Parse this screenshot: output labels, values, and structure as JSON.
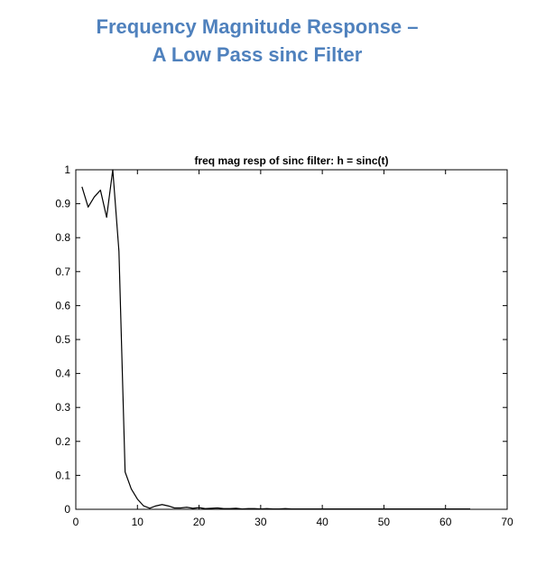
{
  "slide": {
    "title_line1": "Frequency Magnitude Response –",
    "title_line2": "A Low Pass sinc Filter"
  },
  "colors": {
    "title": "#4f81bd",
    "line": "#000000",
    "axes": "#000000"
  },
  "chart_data": {
    "type": "line",
    "title": "freq mag resp of sinc filter: h = sinc(t)",
    "xlabel": "",
    "ylabel": "",
    "xlim": [
      0,
      70
    ],
    "ylim": [
      0,
      1
    ],
    "xticks": [
      "0",
      "10",
      "20",
      "30",
      "40",
      "50",
      "60",
      "70"
    ],
    "yticks": [
      "0",
      "0.1",
      "0.2",
      "0.3",
      "0.4",
      "0.5",
      "0.6",
      "0.7",
      "0.8",
      "0.9",
      "1"
    ],
    "grid": false,
    "legend": "none",
    "series": [
      {
        "x": [
          1,
          2,
          3,
          4,
          5,
          6,
          7,
          8,
          9,
          10,
          11,
          12,
          13,
          14,
          15,
          16,
          17,
          18,
          19,
          20,
          21,
          22,
          23,
          24,
          25,
          26,
          27,
          28,
          29,
          30,
          31,
          32,
          33,
          34,
          35,
          36,
          37,
          38,
          39,
          40,
          41,
          42,
          43,
          44,
          45,
          46,
          47,
          48,
          49,
          50,
          51,
          52,
          53,
          54,
          55,
          56,
          57,
          58,
          59,
          60,
          61,
          62,
          63,
          64
        ],
        "y": [
          0.95,
          0.89,
          0.92,
          0.94,
          0.86,
          1.0,
          0.76,
          0.11,
          0.06,
          0.03,
          0.01,
          0.003,
          0.01,
          0.014,
          0.01,
          0.004,
          0.004,
          0.006,
          0.003,
          0.005,
          0.002,
          0.003,
          0.004,
          0.002,
          0.002,
          0.003,
          0.001,
          0.002,
          0.002,
          0.001,
          0.002,
          0.001,
          0.001,
          0.002,
          0.001,
          0.001,
          0.001,
          0.001,
          0.001,
          0.001,
          0.001,
          0.001,
          0.001,
          0.001,
          0.001,
          0.001,
          0.001,
          0.001,
          0.001,
          0.001,
          0.001,
          0.001,
          0.001,
          0.001,
          0.001,
          0.001,
          0.001,
          0.001,
          0.001,
          0.001,
          0.001,
          0.001,
          0.001,
          0.001
        ]
      }
    ]
  }
}
